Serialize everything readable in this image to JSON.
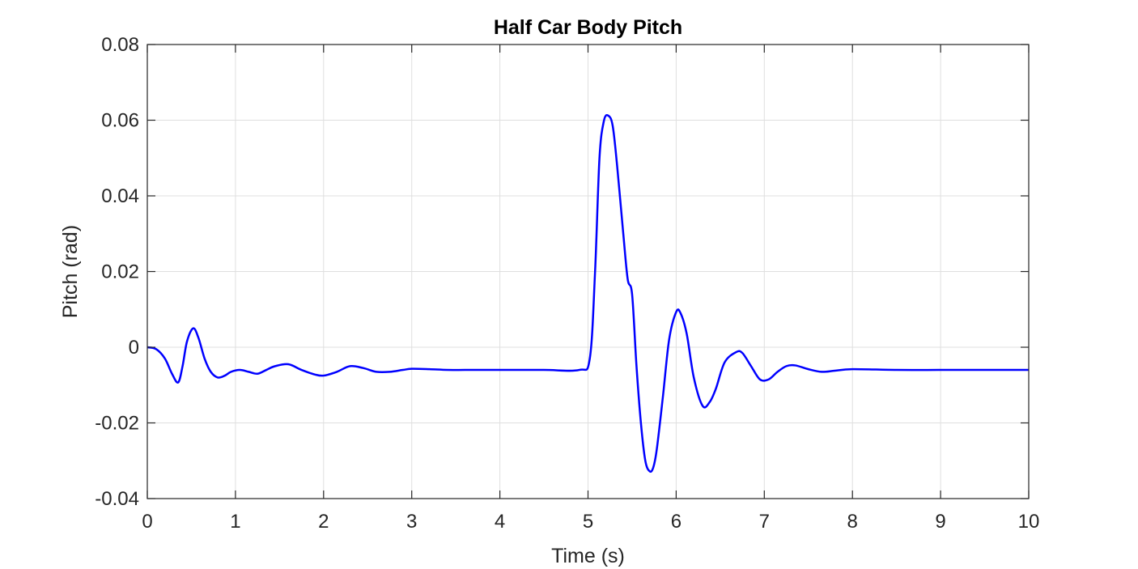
{
  "chart_data": {
    "type": "line",
    "title": "Half Car Body Pitch",
    "xlabel": "Time (s)",
    "ylabel": "Pitch (rad)",
    "xlim": [
      0,
      10
    ],
    "ylim": [
      -0.04,
      0.08
    ],
    "x_ticks": [
      0,
      1,
      2,
      3,
      4,
      5,
      6,
      7,
      8,
      9,
      10
    ],
    "x_tick_labels": [
      "0",
      "1",
      "2",
      "3",
      "4",
      "5",
      "6",
      "7",
      "8",
      "9",
      "10"
    ],
    "y_ticks": [
      -0.04,
      -0.02,
      0,
      0.02,
      0.04,
      0.06,
      0.08
    ],
    "y_tick_labels": [
      "-0.04",
      "-0.02",
      "0",
      "0.02",
      "0.04",
      "0.06",
      "0.08"
    ],
    "grid": true,
    "line_color": "#0000ff",
    "series": [
      {
        "x": [
          0,
          0.1,
          0.2,
          0.28,
          0.35,
          0.4,
          0.45,
          0.52,
          0.58,
          0.65,
          0.72,
          0.8,
          0.88,
          0.95,
          1.05,
          1.15,
          1.25,
          1.35,
          1.45,
          1.6,
          1.75,
          1.9,
          2.0,
          2.15,
          2.3,
          2.45,
          2.6,
          2.75,
          2.9,
          3.0,
          3.2,
          3.4,
          3.6,
          3.8,
          4.0,
          4.5,
          4.9,
          5.02,
          5.08,
          5.13,
          5.18,
          5.23,
          5.28,
          5.33,
          5.4,
          5.45,
          5.5,
          5.55,
          5.6,
          5.65,
          5.7,
          5.74,
          5.78,
          5.85,
          5.92,
          6.0,
          6.05,
          6.12,
          6.2,
          6.3,
          6.38,
          6.45,
          6.55,
          6.68,
          6.75,
          6.85,
          6.95,
          7.05,
          7.15,
          7.25,
          7.35,
          7.5,
          7.65,
          7.8,
          8.0,
          8.5,
          9.0,
          9.5,
          10.0
        ],
        "values": [
          0,
          -0.0005,
          -0.003,
          -0.007,
          -0.0093,
          -0.005,
          0.0015,
          0.005,
          0.0025,
          -0.003,
          -0.0065,
          -0.008,
          -0.0075,
          -0.0065,
          -0.006,
          -0.0065,
          -0.007,
          -0.006,
          -0.005,
          -0.0045,
          -0.006,
          -0.0072,
          -0.0075,
          -0.0065,
          -0.005,
          -0.0055,
          -0.0065,
          -0.0065,
          -0.006,
          -0.0057,
          -0.0058,
          -0.006,
          -0.006,
          -0.006,
          -0.006,
          -0.006,
          -0.006,
          -0.003,
          0.02,
          0.05,
          0.0598,
          0.0612,
          0.0585,
          0.048,
          0.03,
          0.018,
          0.014,
          -0.005,
          -0.02,
          -0.03,
          -0.0328,
          -0.0318,
          -0.027,
          -0.013,
          0.002,
          0.0093,
          0.009,
          0.0035,
          -0.008,
          -0.0155,
          -0.0145,
          -0.011,
          -0.004,
          -0.0013,
          -0.0015,
          -0.005,
          -0.0085,
          -0.0085,
          -0.0065,
          -0.005,
          -0.0048,
          -0.0058,
          -0.0065,
          -0.0062,
          -0.0058,
          -0.006,
          -0.006,
          -0.006,
          -0.006
        ]
      }
    ]
  }
}
